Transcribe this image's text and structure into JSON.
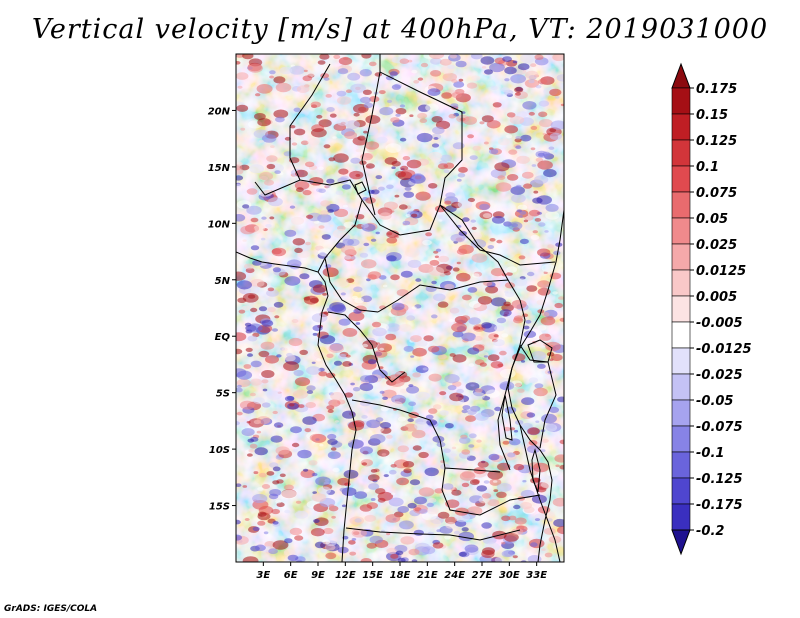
{
  "title": "Vertical velocity [m/s] at 400hPa, VT: 2019031000",
  "footer": "GrADS: IGES/COLA",
  "map": {
    "lon_range": [
      0,
      36
    ],
    "lat_range": [
      -20,
      25
    ],
    "lat_ticks": [
      {
        "value": 20,
        "label": "20N"
      },
      {
        "value": 15,
        "label": "15N"
      },
      {
        "value": 10,
        "label": "10N"
      },
      {
        "value": 5,
        "label": "5N"
      },
      {
        "value": 0,
        "label": "EQ"
      },
      {
        "value": -5,
        "label": "5S"
      },
      {
        "value": -10,
        "label": "10S"
      },
      {
        "value": -15,
        "label": "15S"
      }
    ],
    "lon_ticks": [
      {
        "value": 3,
        "label": "3E"
      },
      {
        "value": 6,
        "label": "6E"
      },
      {
        "value": 9,
        "label": "9E"
      },
      {
        "value": 12,
        "label": "12E"
      },
      {
        "value": 15,
        "label": "15E"
      },
      {
        "value": 18,
        "label": "18E"
      },
      {
        "value": 21,
        "label": "21E"
      },
      {
        "value": 24,
        "label": "24E"
      },
      {
        "value": 27,
        "label": "27E"
      },
      {
        "value": 30,
        "label": "30E"
      },
      {
        "value": 33,
        "label": "33E"
      }
    ]
  },
  "colorbar": {
    "levels": [
      {
        "label": "0.175",
        "color": "#a50f15"
      },
      {
        "label": "0.15",
        "color": "#bf1e24"
      },
      {
        "label": "0.125",
        "color": "#d2353a"
      },
      {
        "label": "0.1",
        "color": "#e04a4f"
      },
      {
        "label": "0.075",
        "color": "#e96b6e"
      },
      {
        "label": "0.05",
        "color": "#f08a8c"
      },
      {
        "label": "0.025",
        "color": "#f5a9aa"
      },
      {
        "label": "0.0125",
        "color": "#f9c8c8"
      },
      {
        "label": "0.005",
        "color": "#fce3e3"
      },
      {
        "label": "-0.005",
        "color": "#ffffff"
      },
      {
        "label": "-0.0125",
        "color": "#e2e1fb"
      },
      {
        "label": "-0.025",
        "color": "#c4c2f5"
      },
      {
        "label": "-0.05",
        "color": "#a6a3ef"
      },
      {
        "label": "-0.075",
        "color": "#8783e6"
      },
      {
        "label": "-0.1",
        "color": "#6a64dc"
      },
      {
        "label": "-0.125",
        "color": "#4f46cf"
      },
      {
        "label": "-0.175",
        "color": "#3a2fbf"
      },
      {
        "label": "-0.2",
        "color": "#2a1da8"
      }
    ],
    "top_color": "#8b0a0f",
    "bottom_color": "#1f1290"
  }
}
